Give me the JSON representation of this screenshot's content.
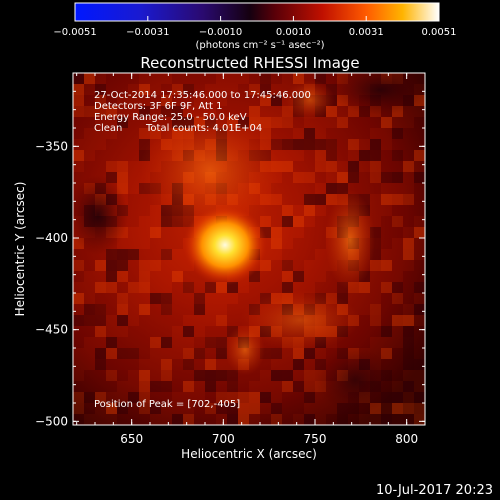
{
  "colorbar": {
    "ticks": [
      "−0.0051",
      "−0.0031",
      "−0.0010",
      "0.0010",
      "0.0031",
      "0.0051"
    ],
    "unit_label": "(photons cm⁻² s⁻¹ asec⁻²)"
  },
  "title": "Reconstructed RHESSI Image",
  "info": {
    "line1": "27-Oct-2014 17:35:46.000 to 17:45:46.000",
    "line2": "Detectors: 3F 6F 9F, Att 1",
    "line3": "Energy Range: 25.0 - 50.0 keV",
    "line4_left": "Clean",
    "line4_right": "Total counts: 4.01E+04"
  },
  "peak_text": "Position of Peak = [702,-405]",
  "axes": {
    "xlabel": "Heliocentric X (arcsec)",
    "ylabel": "Heliocentric Y (arcsec)",
    "xticks": [
      "650",
      "700",
      "750",
      "800"
    ],
    "yticks": [
      "−350",
      "−400",
      "−450",
      "−500"
    ],
    "xrange": [
      618,
      810
    ],
    "yrange": [
      -502,
      -310
    ]
  },
  "footer_date": "10-Jul-2017 20:23",
  "chart_data": {
    "type": "heatmap",
    "title": "Reconstructed RHESSI Image",
    "xlabel": "Heliocentric X (arcsec)",
    "ylabel": "Heliocentric Y (arcsec)",
    "xlim": [
      618,
      810
    ],
    "ylim": [
      -502,
      -310
    ],
    "peak": [
      702,
      -405
    ],
    "color_range": [
      -0.0051,
      0.0051
    ]
  }
}
